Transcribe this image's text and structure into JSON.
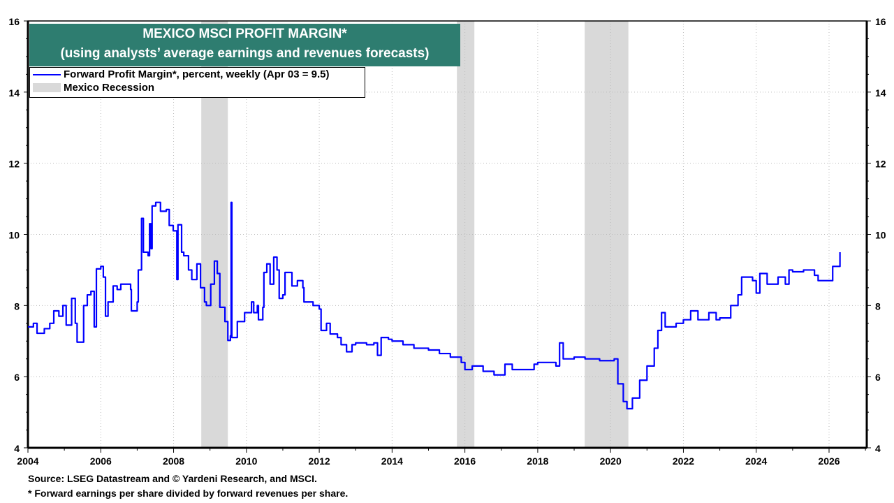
{
  "chart_data": {
    "type": "line",
    "title": "MEXICO MSCI PROFIT MARGIN*",
    "subtitle": "(using analysts’ average earnings and revenues forecasts)",
    "xlim": [
      2004,
      2027
    ],
    "ylim": [
      4,
      16
    ],
    "x_ticks": [
      "2004",
      "2006",
      "2008",
      "2010",
      "2012",
      "2014",
      "2016",
      "2018",
      "2020",
      "2022",
      "2024",
      "2026"
    ],
    "y_ticks": [
      "4",
      "6",
      "8",
      "10",
      "12",
      "14",
      "16"
    ],
    "grid": true,
    "legend_placement": "top-left",
    "legend": [
      "Forward Profit Margin*, percent, weekly (Apr 03 = 9.5)",
      "Mexico Recession"
    ],
    "colors": {
      "line": "#0000ff",
      "recession": "#d9d9d9",
      "title_bg": "#2e7d70"
    },
    "recessions": [
      [
        2008.76,
        2009.49
      ],
      [
        2015.78,
        2016.26
      ],
      [
        2019.29,
        2020.49
      ]
    ],
    "series": [
      {
        "name": "Forward Profit Margin*, percent, weekly (Apr 03 = 9.5)",
        "points": [
          [
            2004.0,
            7.4
          ],
          [
            2004.06,
            7.4
          ],
          [
            2004.15,
            7.5
          ],
          [
            2004.25,
            7.22
          ],
          [
            2004.45,
            7.35
          ],
          [
            2004.6,
            7.5
          ],
          [
            2004.71,
            7.85
          ],
          [
            2004.85,
            7.7
          ],
          [
            2004.96,
            8.0
          ],
          [
            2005.05,
            7.45
          ],
          [
            2005.2,
            8.2
          ],
          [
            2005.3,
            7.5
          ],
          [
            2005.35,
            6.97
          ],
          [
            2005.53,
            8.0
          ],
          [
            2005.63,
            8.3
          ],
          [
            2005.73,
            8.4
          ],
          [
            2005.82,
            7.4
          ],
          [
            2005.88,
            9.03
          ],
          [
            2006.0,
            9.1
          ],
          [
            2006.07,
            8.8
          ],
          [
            2006.13,
            7.7
          ],
          [
            2006.2,
            8.1
          ],
          [
            2006.34,
            8.55
          ],
          [
            2006.45,
            8.45
          ],
          [
            2006.55,
            8.6
          ],
          [
            2006.63,
            8.6
          ],
          [
            2006.82,
            8.45
          ],
          [
            2006.84,
            7.85
          ],
          [
            2007.0,
            8.1
          ],
          [
            2007.03,
            9.0
          ],
          [
            2007.12,
            10.45
          ],
          [
            2007.17,
            9.5
          ],
          [
            2007.3,
            9.4
          ],
          [
            2007.34,
            10.3
          ],
          [
            2007.38,
            9.6
          ],
          [
            2007.41,
            10.8
          ],
          [
            2007.51,
            10.9
          ],
          [
            2007.64,
            10.65
          ],
          [
            2007.8,
            10.7
          ],
          [
            2007.88,
            10.25
          ],
          [
            2007.99,
            10.1
          ],
          [
            2008.09,
            8.73
          ],
          [
            2008.12,
            10.27
          ],
          [
            2008.22,
            9.5
          ],
          [
            2008.28,
            9.4
          ],
          [
            2008.41,
            9.0
          ],
          [
            2008.5,
            8.73
          ],
          [
            2008.64,
            9.17
          ],
          [
            2008.74,
            8.5
          ],
          [
            2008.85,
            8.1
          ],
          [
            2008.9,
            8.0
          ],
          [
            2009.02,
            8.6
          ],
          [
            2009.12,
            9.25
          ],
          [
            2009.2,
            8.9
          ],
          [
            2009.27,
            7.95
          ],
          [
            2009.41,
            7.55
          ],
          [
            2009.49,
            7.02
          ],
          [
            2009.56,
            7.15
          ],
          [
            2009.58,
            10.9
          ],
          [
            2009.6,
            7.1
          ],
          [
            2009.75,
            7.55
          ],
          [
            2009.95,
            7.8
          ],
          [
            2010.14,
            8.1
          ],
          [
            2010.2,
            7.8
          ],
          [
            2010.3,
            8.0
          ],
          [
            2010.33,
            7.6
          ],
          [
            2010.45,
            7.95
          ],
          [
            2010.48,
            8.93
          ],
          [
            2010.56,
            9.17
          ],
          [
            2010.65,
            8.6
          ],
          [
            2010.75,
            9.36
          ],
          [
            2010.84,
            9.0
          ],
          [
            2010.9,
            8.2
          ],
          [
            2011.0,
            8.3
          ],
          [
            2011.06,
            8.93
          ],
          [
            2011.2,
            8.93
          ],
          [
            2011.25,
            8.55
          ],
          [
            2011.4,
            8.7
          ],
          [
            2011.55,
            8.5
          ],
          [
            2011.58,
            8.1
          ],
          [
            2011.83,
            8.0
          ],
          [
            2012.0,
            7.9
          ],
          [
            2012.05,
            7.3
          ],
          [
            2012.2,
            7.5
          ],
          [
            2012.3,
            7.2
          ],
          [
            2012.5,
            7.1
          ],
          [
            2012.6,
            6.9
          ],
          [
            2012.75,
            6.7
          ],
          [
            2012.9,
            6.9
          ],
          [
            2013.0,
            6.95
          ],
          [
            2013.3,
            6.9
          ],
          [
            2013.5,
            6.95
          ],
          [
            2013.6,
            6.6
          ],
          [
            2013.7,
            7.1
          ],
          [
            2013.9,
            7.05
          ],
          [
            2014.0,
            7.0
          ],
          [
            2014.3,
            6.9
          ],
          [
            2014.6,
            6.8
          ],
          [
            2015.0,
            6.75
          ],
          [
            2015.3,
            6.65
          ],
          [
            2015.6,
            6.55
          ],
          [
            2015.9,
            6.4
          ],
          [
            2016.0,
            6.2
          ],
          [
            2016.2,
            6.3
          ],
          [
            2016.5,
            6.15
          ],
          [
            2016.8,
            6.05
          ],
          [
            2017.0,
            6.05
          ],
          [
            2017.1,
            6.35
          ],
          [
            2017.3,
            6.2
          ],
          [
            2017.6,
            6.2
          ],
          [
            2017.9,
            6.35
          ],
          [
            2018.0,
            6.4
          ],
          [
            2018.3,
            6.4
          ],
          [
            2018.5,
            6.3
          ],
          [
            2018.6,
            6.95
          ],
          [
            2018.7,
            6.5
          ],
          [
            2019.0,
            6.55
          ],
          [
            2019.3,
            6.5
          ],
          [
            2019.7,
            6.45
          ],
          [
            2020.0,
            6.45
          ],
          [
            2020.1,
            6.5
          ],
          [
            2020.2,
            5.8
          ],
          [
            2020.35,
            5.3
          ],
          [
            2020.45,
            5.1
          ],
          [
            2020.6,
            5.4
          ],
          [
            2020.8,
            5.9
          ],
          [
            2021.0,
            6.3
          ],
          [
            2021.2,
            6.8
          ],
          [
            2021.3,
            7.3
          ],
          [
            2021.4,
            7.8
          ],
          [
            2021.5,
            7.4
          ],
          [
            2021.8,
            7.5
          ],
          [
            2022.0,
            7.6
          ],
          [
            2022.2,
            7.85
          ],
          [
            2022.4,
            7.6
          ],
          [
            2022.7,
            7.8
          ],
          [
            2022.9,
            7.6
          ],
          [
            2023.0,
            7.65
          ],
          [
            2023.3,
            8.0
          ],
          [
            2023.5,
            8.3
          ],
          [
            2023.6,
            8.8
          ],
          [
            2023.9,
            8.7
          ],
          [
            2024.0,
            8.35
          ],
          [
            2024.1,
            8.9
          ],
          [
            2024.3,
            8.6
          ],
          [
            2024.6,
            8.8
          ],
          [
            2024.8,
            8.6
          ],
          [
            2024.9,
            9.0
          ],
          [
            2025.0,
            8.95
          ],
          [
            2025.3,
            9.0
          ],
          [
            2025.6,
            8.85
          ],
          [
            2025.7,
            8.7
          ],
          [
            2026.0,
            8.7
          ],
          [
            2026.1,
            9.1
          ],
          [
            2026.3,
            9.5
          ]
        ]
      }
    ]
  },
  "footer": {
    "source": "Source: LSEG Datastream and © Yardeni Research, and MSCI.",
    "note": "* Forward earnings per share divided by forward revenues per share."
  }
}
